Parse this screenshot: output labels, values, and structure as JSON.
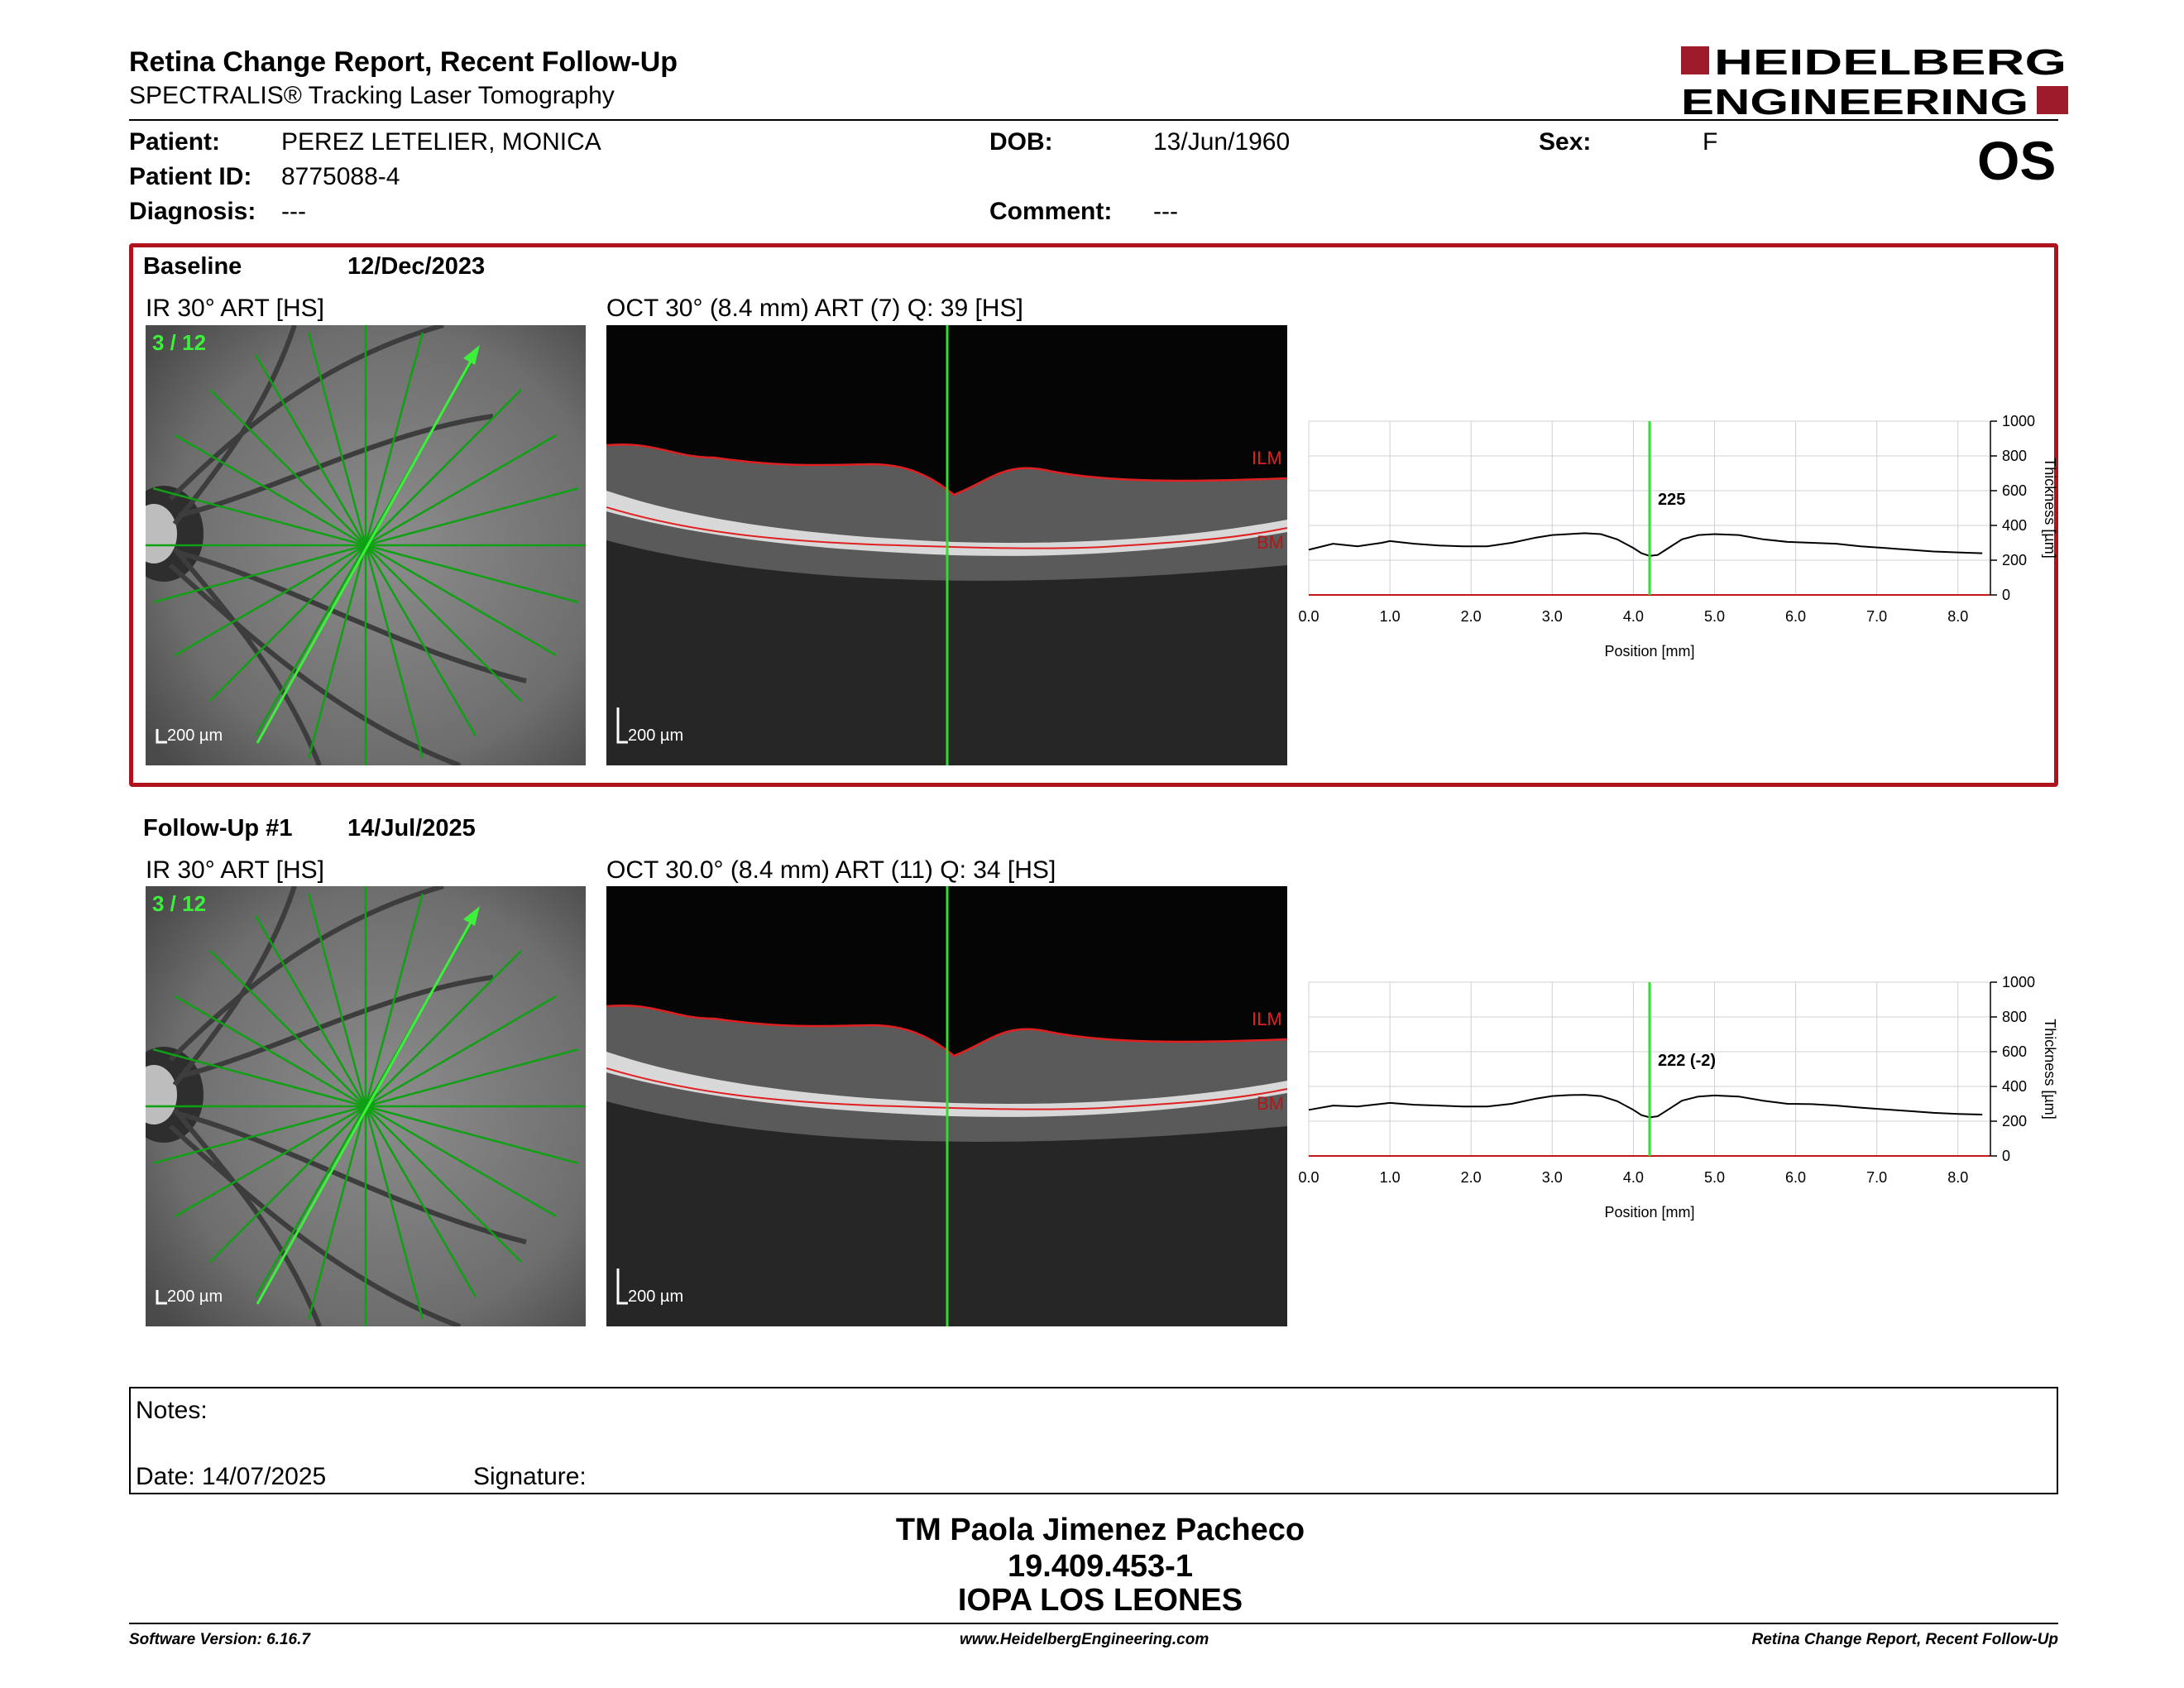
{
  "header": {
    "title": "Retina Change Report, Recent Follow-Up",
    "subtitle": "SPECTRALIS® Tracking Laser Tomography",
    "logo_line1": "HEIDELBERG",
    "logo_line2": "ENGINEERING",
    "brand_color": "#9e1b2c"
  },
  "patient": {
    "patient_label": "Patient:",
    "patient_value": "PEREZ LETELIER, MONICA",
    "id_label": "Patient ID:",
    "id_value": "8775088-4",
    "diagnosis_label": "Diagnosis:",
    "diagnosis_value": "---",
    "dob_label": "DOB:",
    "dob_value": "13/Jun/1960",
    "comment_label": "Comment:",
    "comment_value": "---",
    "sex_label": "Sex:",
    "sex_value": "F",
    "eye": "OS"
  },
  "baseline": {
    "label": "Baseline",
    "date": "12/Dec/2023",
    "ir_title": "IR 30° ART [HS]",
    "ir_counter": "3 / 12",
    "ir_scale": "200 µm",
    "oct_title": "OCT 30° (8.4 mm) ART (7) Q: 39 [HS]",
    "oct_scale": "200 µm",
    "ilm_label": "ILM",
    "bm_label": "BM",
    "cursor_value": "225"
  },
  "followup": {
    "label": "Follow-Up #1",
    "date": "14/Jul/2025",
    "ir_title": "IR 30° ART [HS]",
    "ir_counter": "3 / 12",
    "ir_scale": "200 µm",
    "oct_title": "OCT 30.0° (8.4 mm) ART (11) Q: 34 [HS]",
    "oct_scale": "200 µm",
    "ilm_label": "ILM",
    "bm_label": "BM",
    "cursor_value": "222 (-2)"
  },
  "chart_data": [
    {
      "type": "line",
      "xlabel": "Position [mm]",
      "ylabel": "Thickness [µm]",
      "xlim": [
        0,
        8.4
      ],
      "ylim": [
        0,
        1000
      ],
      "xticks": [
        "0.0",
        "1.0",
        "2.0",
        "3.0",
        "4.0",
        "5.0",
        "6.0",
        "7.0",
        "8.0"
      ],
      "yticks": [
        "0",
        "200",
        "400",
        "600",
        "800",
        "1000"
      ],
      "cursor_x": 4.2,
      "cursor_label": "225",
      "series": [
        {
          "x": [
            0,
            0.3,
            0.6,
            0.9,
            1.0,
            1.3,
            1.6,
            1.9,
            2.2,
            2.5,
            2.8,
            3.0,
            3.2,
            3.4,
            3.6,
            3.8,
            4.0,
            4.1,
            4.2,
            4.3,
            4.4,
            4.6,
            4.8,
            5.0,
            5.3,
            5.6,
            5.9,
            6.2,
            6.5,
            6.8,
            7.1,
            7.4,
            7.7,
            8.0,
            8.3
          ],
          "y": [
            260,
            295,
            280,
            300,
            310,
            295,
            285,
            280,
            280,
            300,
            330,
            345,
            350,
            355,
            350,
            320,
            270,
            240,
            225,
            230,
            260,
            320,
            345,
            350,
            345,
            320,
            305,
            300,
            295,
            280,
            270,
            260,
            250,
            245,
            240
          ]
        }
      ]
    },
    {
      "type": "line",
      "xlabel": "Position [mm]",
      "ylabel": "Thickness [µm]",
      "xlim": [
        0,
        8.4
      ],
      "ylim": [
        0,
        1000
      ],
      "xticks": [
        "0.0",
        "1.0",
        "2.0",
        "3.0",
        "4.0",
        "5.0",
        "6.0",
        "7.0",
        "8.0"
      ],
      "yticks": [
        "0",
        "200",
        "400",
        "600",
        "800",
        "1000"
      ],
      "cursor_x": 4.2,
      "cursor_label": "222 (-2)",
      "series": [
        {
          "x": [
            0,
            0.3,
            0.6,
            0.9,
            1.0,
            1.3,
            1.6,
            1.9,
            2.2,
            2.5,
            2.8,
            3.0,
            3.2,
            3.4,
            3.6,
            3.8,
            4.0,
            4.1,
            4.2,
            4.3,
            4.4,
            4.6,
            4.8,
            5.0,
            5.3,
            5.6,
            5.9,
            6.2,
            6.5,
            6.8,
            7.1,
            7.4,
            7.7,
            8.0,
            8.3
          ],
          "y": [
            265,
            290,
            285,
            300,
            305,
            295,
            290,
            285,
            285,
            300,
            330,
            345,
            350,
            352,
            345,
            315,
            265,
            235,
            222,
            228,
            258,
            318,
            342,
            348,
            342,
            318,
            300,
            298,
            290,
            278,
            268,
            258,
            248,
            242,
            238
          ]
        }
      ]
    }
  ],
  "notes": {
    "notes_label": "Notes:",
    "date_label": "Date: 14/07/2025",
    "signature_label": "Signature:"
  },
  "signatory": {
    "name": "TM Paola Jimenez Pacheco",
    "rut": "19.409.453-1",
    "institution": "IOPA LOS LEONES"
  },
  "footer": {
    "software": "Software Version: 6.16.7",
    "website": "www.HeidelbergEngineering.com",
    "report": "Retina Change Report, Recent Follow-Up"
  }
}
